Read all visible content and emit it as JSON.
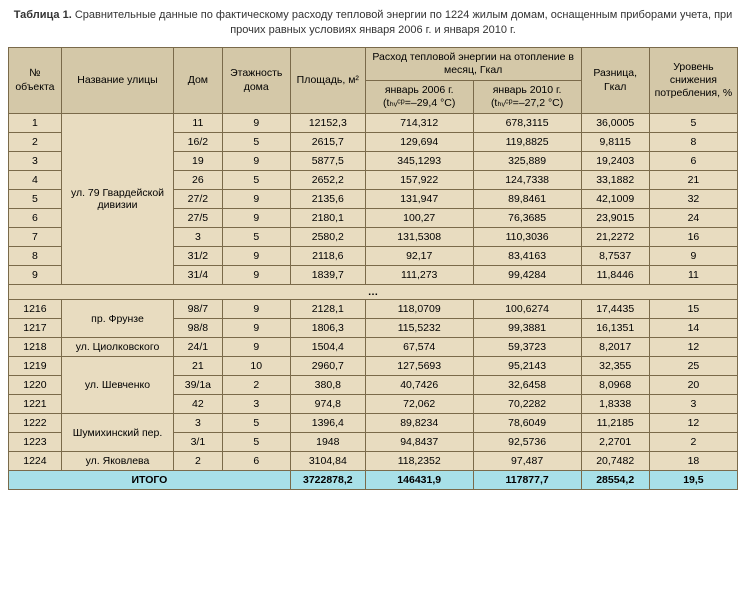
{
  "caption_bold": "Таблица 1.",
  "caption_rest": " Сравнительные данные по фактическому расходу тепловой энергии по 1224 жилым домам, оснащенным приборами учета, при прочих равных условиях января 2006 г. и января 2010 г.",
  "headers": {
    "obj": "№ объекта",
    "street": "Название улицы",
    "house": "Дом",
    "floors": "Этажность дома",
    "area": "Площадь, м²",
    "heat_group": "Расход тепловой энергии на отопление в месяц, Гкал",
    "jan06": "январь 2006 г. (tₕᵥᶜᵖ=–29,4 °C)",
    "jan10": "январь 2010 г. (tₕᵥᶜᵖ=–27,2 °C)",
    "diff": "Разница, Гкал",
    "pct": "Уровень снижения потребления, %"
  },
  "streets": {
    "gvard": "ул. 79 Гвардейской дивизии",
    "frunze": "пр. Фрунзе",
    "tsiolk": "ул. Циолковского",
    "shevch": "ул. Шевченко",
    "shumih": "Шумихинский пер.",
    "yakov": "ул. Яковлева"
  },
  "rows_top": [
    {
      "n": "1",
      "h": "11",
      "f": "9",
      "a": "12152,3",
      "j06": "714,312",
      "j10": "678,3115",
      "d": "36,0005",
      "p": "5"
    },
    {
      "n": "2",
      "h": "16/2",
      "f": "5",
      "a": "2615,7",
      "j06": "129,694",
      "j10": "119,8825",
      "d": "9,8115",
      "p": "8"
    },
    {
      "n": "3",
      "h": "19",
      "f": "9",
      "a": "5877,5",
      "j06": "345,1293",
      "j10": "325,889",
      "d": "19,2403",
      "p": "6"
    },
    {
      "n": "4",
      "h": "26",
      "f": "5",
      "a": "2652,2",
      "j06": "157,922",
      "j10": "124,7338",
      "d": "33,1882",
      "p": "21"
    },
    {
      "n": "5",
      "h": "27/2",
      "f": "9",
      "a": "2135,6",
      "j06": "131,947",
      "j10": "89,8461",
      "d": "42,1009",
      "p": "32"
    },
    {
      "n": "6",
      "h": "27/5",
      "f": "9",
      "a": "2180,1",
      "j06": "100,27",
      "j10": "76,3685",
      "d": "23,9015",
      "p": "24"
    },
    {
      "n": "7",
      "h": "3",
      "f": "5",
      "a": "2580,2",
      "j06": "131,5308",
      "j10": "110,3036",
      "d": "21,2272",
      "p": "16"
    },
    {
      "n": "8",
      "h": "31/2",
      "f": "9",
      "a": "2118,6",
      "j06": "92,17",
      "j10": "83,4163",
      "d": "8,7537",
      "p": "9"
    },
    {
      "n": "9",
      "h": "31/4",
      "f": "9",
      "a": "1839,7",
      "j06": "111,273",
      "j10": "99,4284",
      "d": "11,8446",
      "p": "11"
    }
  ],
  "ellipsis": "…",
  "rows_bot": [
    {
      "n": "1216",
      "street_key": "frunze",
      "street_span": 2,
      "h": "98/7",
      "f": "9",
      "a": "2128,1",
      "j06": "118,0709",
      "j10": "100,6274",
      "d": "17,4435",
      "p": "15"
    },
    {
      "n": "1217",
      "h": "98/8",
      "f": "9",
      "a": "1806,3",
      "j06": "115,5232",
      "j10": "99,3881",
      "d": "16,1351",
      "p": "14"
    },
    {
      "n": "1218",
      "street_key": "tsiolk",
      "street_span": 1,
      "h": "24/1",
      "f": "9",
      "a": "1504,4",
      "j06": "67,574",
      "j10": "59,3723",
      "d": "8,2017",
      "p": "12"
    },
    {
      "n": "1219",
      "street_key": "shevch",
      "street_span": 3,
      "h": "21",
      "f": "10",
      "a": "2960,7",
      "j06": "127,5693",
      "j10": "95,2143",
      "d": "32,355",
      "p": "25"
    },
    {
      "n": "1220",
      "h": "39/1а",
      "f": "2",
      "a": "380,8",
      "j06": "40,7426",
      "j10": "32,6458",
      "d": "8,0968",
      "p": "20"
    },
    {
      "n": "1221",
      "h": "42",
      "f": "3",
      "a": "974,8",
      "j06": "72,062",
      "j10": "70,2282",
      "d": "1,8338",
      "p": "3"
    },
    {
      "n": "1222",
      "street_key": "shumih",
      "street_span": 2,
      "h": "3",
      "f": "5",
      "a": "1396,4",
      "j06": "89,8234",
      "j10": "78,6049",
      "d": "11,2185",
      "p": "12"
    },
    {
      "n": "1223",
      "h": "3/1",
      "f": "5",
      "a": "1948",
      "j06": "94,8437",
      "j10": "92,5736",
      "d": "2,2701",
      "p": "2"
    },
    {
      "n": "1224",
      "street_key": "yakov",
      "street_span": 1,
      "h": "2",
      "f": "6",
      "a": "3104,84",
      "j06": "118,2352",
      "j10": "97,487",
      "d": "20,7482",
      "p": "18"
    }
  ],
  "total": {
    "label": "ИТОГО",
    "a": "3722878,2",
    "j06": "146431,9",
    "j10": "117877,7",
    "d": "28554,2",
    "p": "19,5"
  }
}
